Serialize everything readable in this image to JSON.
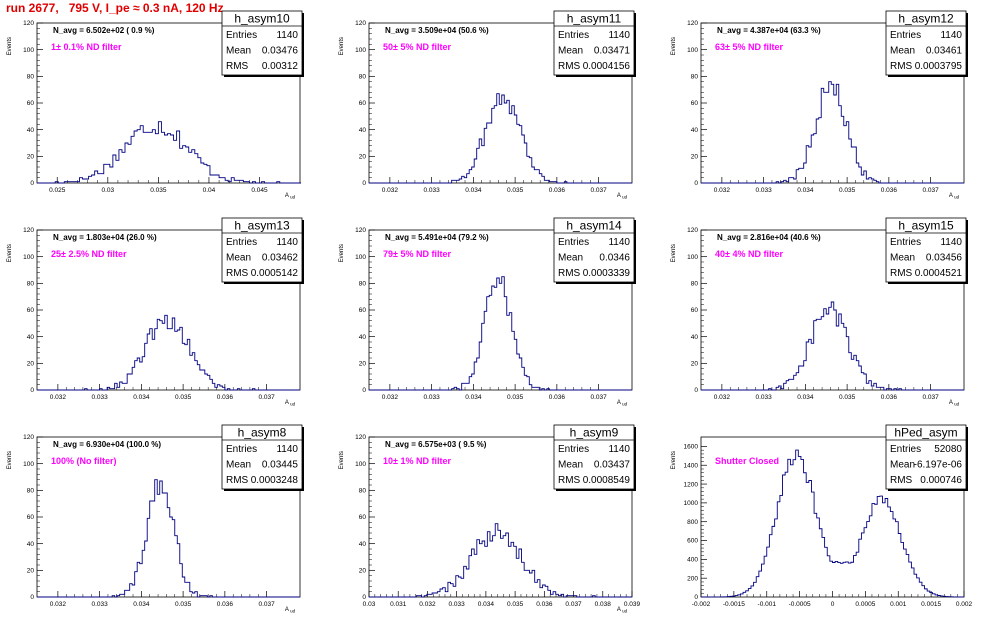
{
  "run_label": "run 2677,   795 V, I_pe ≈ 0.3 nA, 120 Hz",
  "colors": {
    "title": "#e00000",
    "hist_line": "#000080",
    "filter_text": "#ff00ff"
  },
  "chart_data": [
    {
      "type": "histogram",
      "name": "h_asym10",
      "navg_text": "N_avg = 6.502e+02 ( 0.9 %)",
      "filter_text": "1± 0.1% ND filter",
      "stats": {
        "entries": "1140",
        "mean": "0.03476",
        "rms": "0.00312"
      },
      "xlim": [
        0.023,
        0.049
      ],
      "ylim": [
        0,
        120
      ],
      "xticks": [
        "0.025",
        "0.03",
        "0.035",
        "0.04",
        "0.045"
      ],
      "xtick_values": [
        0.025,
        0.03,
        0.035,
        0.04,
        0.045
      ],
      "yticks": [
        "0",
        "20",
        "40",
        "60",
        "80",
        "100",
        "120"
      ],
      "ytick_values": [
        0,
        20,
        40,
        60,
        80,
        100,
        120
      ],
      "xlabel": "A_{ud}",
      "ylabel": "Events",
      "mean": 0.03476,
      "sigma": 0.00312,
      "entries": 1140,
      "binwidth": 0.0003
    },
    {
      "type": "histogram",
      "name": "h_asym11",
      "navg_text": "N_avg = 3.509e+04 (50.6 %)",
      "filter_text": "50± 5% ND filter",
      "stats": {
        "entries": "1140",
        "mean": "0.03471",
        "rms": "0.0004156"
      },
      "xlim": [
        0.0315,
        0.0378
      ],
      "ylim": [
        0,
        120
      ],
      "xticks": [
        "0.032",
        "0.033",
        "0.034",
        "0.035",
        "0.036",
        "0.037"
      ],
      "xtick_values": [
        0.032,
        0.033,
        0.034,
        0.035,
        0.036,
        0.037
      ],
      "yticks": [
        "0",
        "20",
        "40",
        "60",
        "80",
        "100",
        "120"
      ],
      "ytick_values": [
        0,
        20,
        40,
        60,
        80,
        100,
        120
      ],
      "xlabel": "A_{ud}",
      "ylabel": "Events",
      "mean": 0.03471,
      "sigma": 0.0004156,
      "entries": 1140,
      "binwidth": 6e-05
    },
    {
      "type": "histogram",
      "name": "h_asym12",
      "navg_text": "N_avg = 4.387e+04 (63.3 %)",
      "filter_text": "63± 5% ND filter",
      "stats": {
        "entries": "1140",
        "mean": "0.03461",
        "rms": "0.0003795"
      },
      "xlim": [
        0.0315,
        0.0378
      ],
      "ylim": [
        0,
        120
      ],
      "xticks": [
        "0.032",
        "0.033",
        "0.034",
        "0.035",
        "0.036",
        "0.037"
      ],
      "xtick_values": [
        0.032,
        0.033,
        0.034,
        0.035,
        0.036,
        0.037
      ],
      "yticks": [
        "0",
        "20",
        "40",
        "60",
        "80",
        "100",
        "120"
      ],
      "ytick_values": [
        0,
        20,
        40,
        60,
        80,
        100,
        120
      ],
      "xlabel": "A_{ud}",
      "ylabel": "Events",
      "mean": 0.03461,
      "sigma": 0.0003795,
      "entries": 1140,
      "binwidth": 6e-05
    },
    {
      "type": "histogram",
      "name": "h_asym13",
      "navg_text": "N_avg = 1.803e+04 (26.0 %)",
      "filter_text": "25± 2.5% ND filter",
      "stats": {
        "entries": "1140",
        "mean": "0.03462",
        "rms": "0.0005142"
      },
      "xlim": [
        0.0315,
        0.0378
      ],
      "ylim": [
        0,
        120
      ],
      "xticks": [
        "0.032",
        "0.033",
        "0.034",
        "0.035",
        "0.036",
        "0.037"
      ],
      "xtick_values": [
        0.032,
        0.033,
        0.034,
        0.035,
        0.036,
        0.037
      ],
      "yticks": [
        "0",
        "20",
        "40",
        "60",
        "80",
        "100",
        "120"
      ],
      "ytick_values": [
        0,
        20,
        40,
        60,
        80,
        100,
        120
      ],
      "xlabel": "A_{ud}",
      "ylabel": "Events",
      "mean": 0.03462,
      "sigma": 0.0005142,
      "entries": 1140,
      "binwidth": 6e-05
    },
    {
      "type": "histogram",
      "name": "h_asym14",
      "navg_text": "N_avg = 5.491e+04 (79.2 %)",
      "filter_text": "79± 5% ND filter",
      "stats": {
        "entries": "1140",
        "mean": "0.0346",
        "rms": "0.0003339"
      },
      "xlim": [
        0.0315,
        0.0378
      ],
      "ylim": [
        0,
        120
      ],
      "xticks": [
        "0.032",
        "0.033",
        "0.034",
        "0.035",
        "0.036",
        "0.037"
      ],
      "xtick_values": [
        0.032,
        0.033,
        0.034,
        0.035,
        0.036,
        0.037
      ],
      "yticks": [
        "0",
        "20",
        "40",
        "60",
        "80",
        "100",
        "120"
      ],
      "ytick_values": [
        0,
        20,
        40,
        60,
        80,
        100,
        120
      ],
      "xlabel": "A_{ud}",
      "ylabel": "Events",
      "mean": 0.0346,
      "sigma": 0.0003339,
      "entries": 1140,
      "binwidth": 6e-05
    },
    {
      "type": "histogram",
      "name": "h_asym15",
      "navg_text": "N_avg = 2.816e+04 (40.6 %)",
      "filter_text": "40± 4% ND filter",
      "stats": {
        "entries": "1140",
        "mean": "0.03456",
        "rms": "0.0004521"
      },
      "xlim": [
        0.0315,
        0.0378
      ],
      "ylim": [
        0,
        120
      ],
      "xticks": [
        "0.032",
        "0.033",
        "0.034",
        "0.035",
        "0.036",
        "0.037"
      ],
      "xtick_values": [
        0.032,
        0.033,
        0.034,
        0.035,
        0.036,
        0.037
      ],
      "yticks": [
        "0",
        "20",
        "40",
        "60",
        "80",
        "100",
        "120"
      ],
      "ytick_values": [
        0,
        20,
        40,
        60,
        80,
        100,
        120
      ],
      "xlabel": "A_{ud}",
      "ylabel": "Events",
      "mean": 0.03456,
      "sigma": 0.0004521,
      "entries": 1140,
      "binwidth": 6e-05
    },
    {
      "type": "histogram",
      "name": "h_asym8",
      "navg_text": "N_avg = 6.930e+04 (100.0 %)",
      "filter_text": "100% (No filter)",
      "stats": {
        "entries": "1140",
        "mean": "0.03445",
        "rms": "0.0003248"
      },
      "xlim": [
        0.0315,
        0.0378
      ],
      "ylim": [
        0,
        120
      ],
      "xticks": [
        "0.032",
        "0.033",
        "0.034",
        "0.035",
        "0.036",
        "0.037"
      ],
      "xtick_values": [
        0.032,
        0.033,
        0.034,
        0.035,
        0.036,
        0.037
      ],
      "yticks": [
        "0",
        "20",
        "40",
        "60",
        "80",
        "100",
        "120"
      ],
      "ytick_values": [
        0,
        20,
        40,
        60,
        80,
        100,
        120
      ],
      "xlabel": "A_{ud}",
      "ylabel": "Events",
      "mean": 0.03445,
      "sigma": 0.0003248,
      "entries": 1140,
      "binwidth": 6e-05
    },
    {
      "type": "histogram",
      "name": "h_asym9",
      "navg_text": "N_avg = 6.575e+03 ( 9.5 %)",
      "filter_text": "10± 1% ND filter",
      "stats": {
        "entries": "1140",
        "mean": "0.03437",
        "rms": "0.0008549"
      },
      "xlim": [
        0.03,
        0.039
      ],
      "ylim": [
        0,
        120
      ],
      "xticks": [
        "0.03",
        "0.031",
        "0.032",
        "0.033",
        "0.034",
        "0.035",
        "0.036",
        "0.037",
        "0.038",
        "0.039"
      ],
      "xtick_values": [
        0.03,
        0.031,
        0.032,
        0.033,
        0.034,
        0.035,
        0.036,
        0.037,
        0.038,
        0.039
      ],
      "yticks": [
        "0",
        "20",
        "40",
        "60",
        "80",
        "100",
        "120"
      ],
      "ytick_values": [
        0,
        20,
        40,
        60,
        80,
        100,
        120
      ],
      "xlabel": "A_{ud}",
      "ylabel": "Events",
      "mean": 0.03437,
      "sigma": 0.0008549,
      "entries": 1140,
      "binwidth": 9e-05
    },
    {
      "type": "histogram",
      "name": "hPed_asym",
      "navg_text": "",
      "filter_text": "Shutter Closed",
      "stats": {
        "entries": "52080",
        "mean": "-6.197e-06",
        "rms": "0.000746"
      },
      "xlim": [
        -0.002,
        0.002
      ],
      "ylim": [
        0,
        1700
      ],
      "xticks": [
        "-0.002",
        "-0.0015",
        "-0.001",
        "-0.0005",
        "0",
        "0.0005",
        "0.001",
        "0.0015",
        "0.002"
      ],
      "xtick_values": [
        -0.002,
        -0.0015,
        -0.001,
        -0.0005,
        0,
        0.0005,
        0.001,
        0.0015,
        0.002
      ],
      "yticks": [
        "0",
        "200",
        "400",
        "600",
        "800",
        "1000",
        "1200",
        "1400",
        "1600"
      ],
      "ytick_values": [
        0,
        200,
        400,
        600,
        800,
        1000,
        1200,
        1400,
        1600
      ],
      "xlabel": "",
      "ylabel": "Events",
      "bimodal": {
        "peaks": [
          {
            "center": -0.00055,
            "sigma": 0.0003,
            "height": 1500
          },
          {
            "center": 0.00075,
            "sigma": 0.0003,
            "height": 1050
          }
        ],
        "floor": 380
      },
      "entries": 52080,
      "binwidth": 4e-05
    }
  ]
}
